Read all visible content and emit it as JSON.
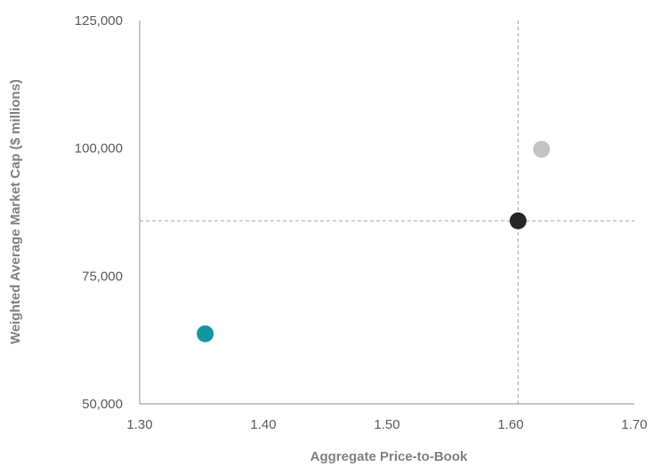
{
  "chart_data": {
    "type": "scatter",
    "title": "",
    "xlabel": "Aggregate Price-to-Book",
    "ylabel": "Weighted Average Market Cap ($ millions)",
    "xlim": [
      1.3,
      1.7
    ],
    "ylim": [
      50000,
      125000
    ],
    "x_ticks": [
      "1.30",
      "1.40",
      "1.50",
      "1.60",
      "1.70"
    ],
    "y_ticks": [
      "50,000",
      "75,000",
      "100,000",
      "125,000"
    ],
    "grid": false,
    "points": [
      {
        "x": 1.353,
        "y": 63700,
        "color": "#13979e"
      },
      {
        "x": 1.606,
        "y": 85800,
        "color": "#262626"
      },
      {
        "x": 1.625,
        "y": 99800,
        "color": "#c3c3c3"
      }
    ],
    "reference_lines": {
      "x": 1.606,
      "y": 85800,
      "color": "#a6a6a6",
      "style": "dashed"
    }
  }
}
